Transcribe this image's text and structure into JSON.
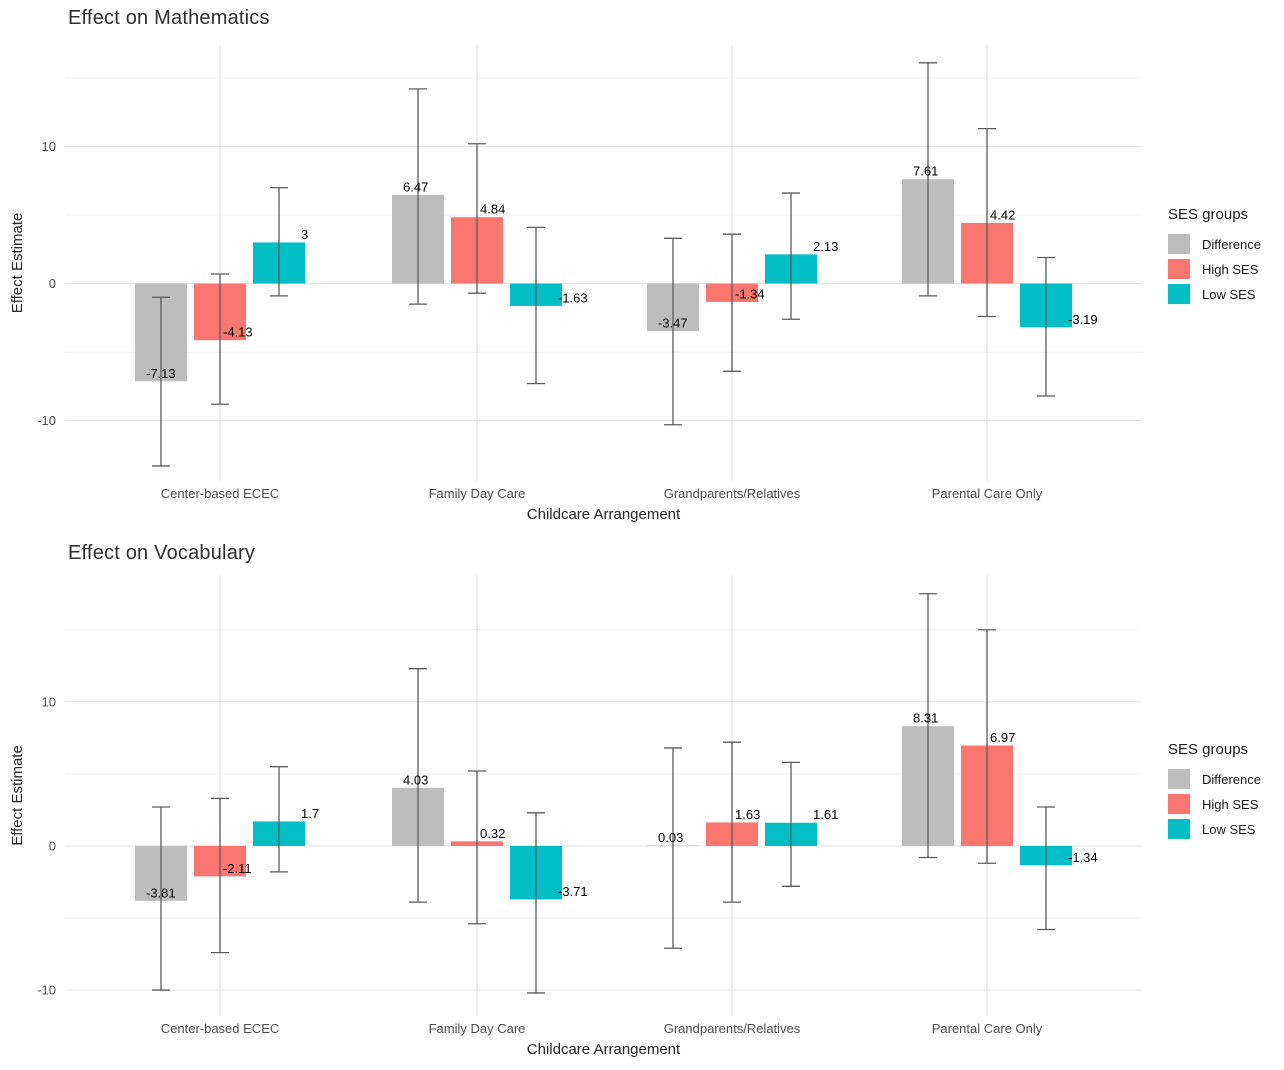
{
  "colors": {
    "difference": "#BDBDBD",
    "high_ses": "#F8766D",
    "low_ses": "#00BFC4",
    "grid_major": "#E3E3E3",
    "grid_minor": "#EDEDED",
    "errorbar": "#5C5C5C",
    "axis_text": "#4D4D4D",
    "axis_title_text": "#262626",
    "value_label_text": "#000000",
    "background": "#FFFFFF"
  },
  "legend": {
    "title": "SES groups",
    "entries": [
      {
        "label": "Difference",
        "color_key": "difference"
      },
      {
        "label": "High SES",
        "color_key": "high_ses"
      },
      {
        "label": "Low SES",
        "color_key": "low_ses"
      }
    ]
  },
  "chart_data": [
    {
      "type": "bar",
      "title": "Effect on Mathematics",
      "xlabel": "Childcare Arrangement",
      "ylabel": "Effect Estimate",
      "categories": [
        "Center-based ECEC",
        "Family Day Care",
        "Grandparents/Relatives",
        "Parental Care Only"
      ],
      "yticks": [
        -10,
        0,
        10
      ],
      "ytick_labels": [
        "-10",
        "0",
        "10"
      ],
      "minor_ticks": [
        -5,
        5,
        15
      ],
      "ylim": [
        -14.4,
        17.4
      ],
      "grid": true,
      "legend_position": "right",
      "series": [
        {
          "name": "Difference",
          "color_key": "difference",
          "values": [
            -7.13,
            6.47,
            -3.47,
            7.61
          ],
          "ci_low": [
            -13.3,
            -1.5,
            -10.3,
            -0.9
          ],
          "ci_high": [
            -1.0,
            14.2,
            3.3,
            16.1
          ]
        },
        {
          "name": "High SES",
          "color_key": "high_ses",
          "values": [
            -4.13,
            4.84,
            -1.34,
            4.42
          ],
          "ci_low": [
            -8.8,
            -0.7,
            -6.4,
            -2.4
          ],
          "ci_high": [
            0.7,
            10.2,
            3.6,
            11.3
          ]
        },
        {
          "name": "Low SES",
          "color_key": "low_ses",
          "values": [
            3,
            -1.63,
            2.13,
            -3.19
          ],
          "ci_low": [
            -0.9,
            -7.3,
            -2.6,
            -8.2
          ],
          "ci_high": [
            7.0,
            4.1,
            6.6,
            1.9
          ]
        }
      ]
    },
    {
      "type": "bar",
      "title": "Effect on Vocabulary",
      "xlabel": "Childcare Arrangement",
      "ylabel": "Effect Estimate",
      "categories": [
        "Center-based ECEC",
        "Family Day Care",
        "Grandparents/Relatives",
        "Parental Care Only"
      ],
      "yticks": [
        -10,
        0,
        10
      ],
      "ytick_labels": [
        "-10",
        "0",
        "10"
      ],
      "minor_ticks": [
        -5,
        5,
        15
      ],
      "ylim": [
        -11.8,
        18.8
      ],
      "grid": true,
      "legend_position": "right",
      "series": [
        {
          "name": "Difference",
          "color_key": "difference",
          "values": [
            -3.81,
            4.03,
            0.03,
            8.31
          ],
          "ci_low": [
            -10.0,
            -3.9,
            -7.1,
            -0.8
          ],
          "ci_high": [
            2.7,
            12.3,
            6.8,
            17.5
          ]
        },
        {
          "name": "High SES",
          "color_key": "high_ses",
          "values": [
            -2.11,
            0.32,
            1.63,
            6.97
          ],
          "ci_low": [
            -7.4,
            -5.4,
            -3.9,
            -1.2
          ],
          "ci_high": [
            3.3,
            5.2,
            7.2,
            15.0
          ]
        },
        {
          "name": "Low SES",
          "color_key": "low_ses",
          "values": [
            1.7,
            -3.71,
            1.61,
            -1.34
          ],
          "ci_low": [
            -1.8,
            -10.2,
            -2.8,
            -5.8
          ],
          "ci_high": [
            5.5,
            2.3,
            5.8,
            2.7
          ]
        }
      ]
    }
  ]
}
